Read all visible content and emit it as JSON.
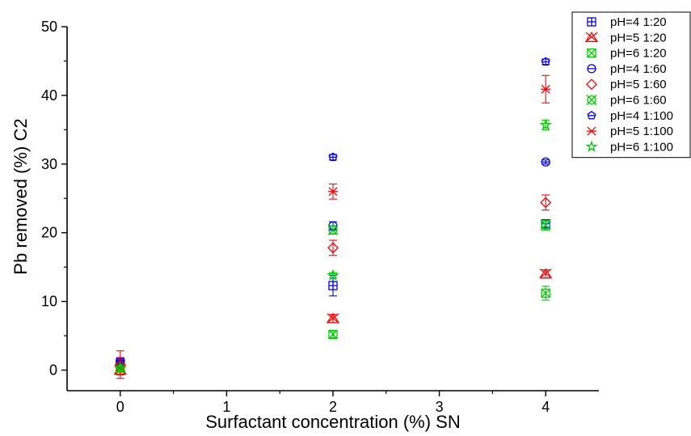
{
  "chart_data": {
    "type": "scatter",
    "xlabel": "Surfactant concentration (%) SN",
    "ylabel": "Pb removed (%) C2",
    "xlim": [
      -0.5,
      4.5
    ],
    "ylim": [
      -3,
      50
    ],
    "xticks": [
      0,
      1,
      2,
      3,
      4
    ],
    "yticks": [
      0,
      10,
      20,
      30,
      40,
      50
    ],
    "grid": false,
    "legend_position": "top-right",
    "series": [
      {
        "name": "pH=4 1:20",
        "color": "#0000ff",
        "marker": "square-plus",
        "x": [
          0,
          2,
          4
        ],
        "y": [
          1.0,
          12.3,
          21.3
        ],
        "err": [
          0.8,
          1.5,
          0.5
        ]
      },
      {
        "name": "pH=5 1:20",
        "color": "#ff0000",
        "marker": "triangle-x",
        "x": [
          0,
          2,
          4
        ],
        "y": [
          0.0,
          7.5,
          14.0
        ],
        "err": [
          0.6,
          0.6,
          0.6
        ]
      },
      {
        "name": "pH=6 1:20",
        "color": "#00cc00",
        "marker": "square-x",
        "x": [
          0,
          2,
          4
        ],
        "y": [
          0.3,
          5.2,
          11.2
        ],
        "err": [
          0.5,
          0.5,
          1.0
        ]
      },
      {
        "name": "pH=4 1:60",
        "color": "#0000ff",
        "marker": "circle-line",
        "x": [
          0,
          2,
          4
        ],
        "y": [
          1.2,
          21.0,
          30.3
        ],
        "err": [
          0.6,
          0.6,
          0.3
        ]
      },
      {
        "name": "pH=5 1:60",
        "color": "#ff0000",
        "marker": "diamond",
        "x": [
          0,
          2,
          4
        ],
        "y": [
          0.8,
          17.8,
          24.4
        ],
        "err": [
          2.0,
          1.1,
          1.1
        ]
      },
      {
        "name": "pH=6 1:60",
        "color": "#00cc00",
        "marker": "circle-x",
        "x": [
          0,
          2,
          4
        ],
        "y": [
          0.5,
          20.4,
          21.1
        ],
        "err": [
          0.5,
          0.6,
          0.7
        ]
      },
      {
        "name": "pH=4 1:100",
        "color": "#0000ff",
        "marker": "pentagon",
        "x": [
          0,
          2,
          4
        ],
        "y": [
          1.0,
          31.0,
          44.9
        ],
        "err": [
          0.4,
          0.4,
          0.4
        ]
      },
      {
        "name": "pH=5 1:100",
        "color": "#ff0000",
        "marker": "asterisk",
        "x": [
          0,
          2,
          4
        ],
        "y": [
          0.5,
          26.0,
          40.9
        ],
        "err": [
          1.2,
          1.1,
          2.0
        ]
      },
      {
        "name": "pH=6 1:100",
        "color": "#00cc00",
        "marker": "star",
        "x": [
          0,
          2,
          4
        ],
        "y": [
          0.2,
          13.8,
          35.7
        ],
        "err": [
          0.4,
          0.4,
          0.7
        ]
      }
    ]
  }
}
